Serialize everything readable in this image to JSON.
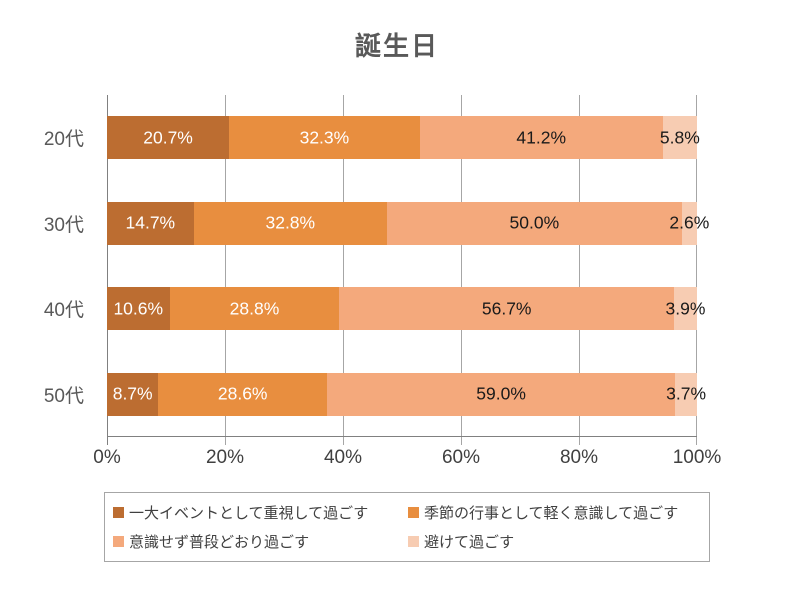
{
  "title": "誕生日",
  "chart_data": {
    "type": "bar",
    "variant": "horizontal-stacked",
    "title": "誕生日",
    "categories": [
      "20代",
      "30代",
      "40代",
      "50代"
    ],
    "series": [
      {
        "name": "一大イベントとして重視して過ごす",
        "color": "#bc6d31",
        "label_color": "#ffffff",
        "values": [
          20.7,
          14.7,
          10.6,
          8.7
        ]
      },
      {
        "name": "季節の行事として軽く意識して過ごす",
        "color": "#e88e3f",
        "label_color": "#ffffff",
        "values": [
          32.3,
          32.8,
          28.8,
          28.6
        ]
      },
      {
        "name": "意識せず普段どおり過ごす",
        "color": "#f4a97c",
        "label_color": "#1a1a1a",
        "values": [
          41.2,
          50.0,
          56.7,
          59.0
        ]
      },
      {
        "name": "避けて過ごす",
        "color": "#f7ccb2",
        "label_color": "#1a1a1a",
        "values": [
          5.8,
          2.6,
          3.9,
          3.7
        ]
      }
    ],
    "x_ticks": [
      "0%",
      "20%",
      "40%",
      "60%",
      "80%",
      "100%"
    ],
    "xlim": [
      0,
      100
    ],
    "value_suffix": "%",
    "value_decimals": 1,
    "grid": true,
    "legend_position": "bottom"
  }
}
